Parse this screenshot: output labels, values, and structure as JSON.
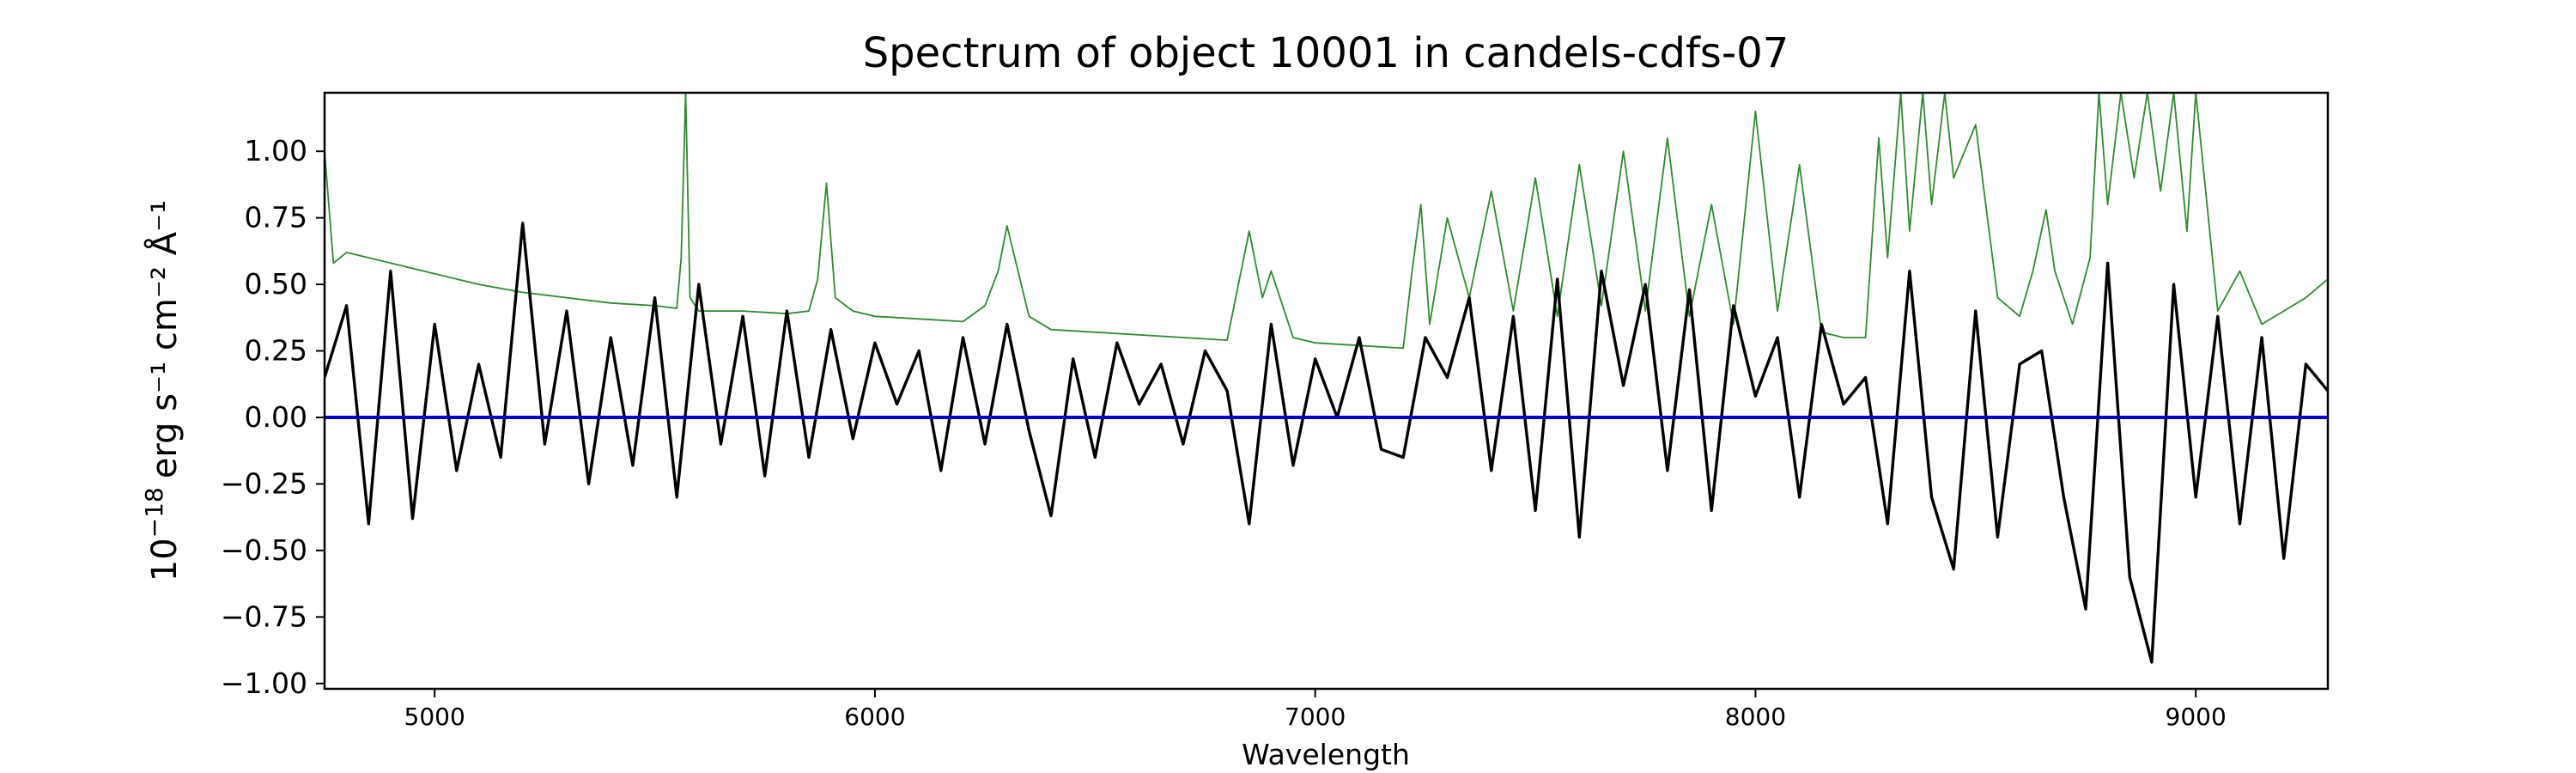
{
  "chart_data": {
    "type": "line",
    "title": "Spectrum of object 10001 in candels-cdfs-07",
    "xlabel": "Wavelength",
    "ylabel_base": "10",
    "ylabel_exp": "−18",
    "ylabel_rest": "erg s⁻¹ cm⁻² Å⁻¹",
    "xlim": [
      4750,
      9300
    ],
    "ylim": [
      -1.02,
      1.22
    ],
    "x_ticks": [
      5000,
      6000,
      7000,
      8000,
      9000
    ],
    "x_tick_labels": [
      "5000",
      "6000",
      "7000",
      "8000",
      "9000"
    ],
    "y_ticks": [
      -1.0,
      -0.75,
      -0.5,
      -0.25,
      0.0,
      0.25,
      0.5,
      0.75,
      1.0
    ],
    "y_tick_labels": [
      "−1.00",
      "−0.75",
      "−0.50",
      "−0.25",
      "0.00",
      "0.25",
      "0.50",
      "0.75",
      "1.00"
    ],
    "grid": false,
    "legend": "none",
    "series": [
      {
        "role": "flux",
        "color": "#000000",
        "x": [
          4750,
          4800,
          4850,
          4900,
          4950,
          5000,
          5050,
          5100,
          5150,
          5200,
          5250,
          5300,
          5350,
          5400,
          5450,
          5500,
          5550,
          5600,
          5650,
          5700,
          5750,
          5800,
          5850,
          5900,
          5950,
          6000,
          6050,
          6100,
          6150,
          6200,
          6250,
          6300,
          6350,
          6400,
          6450,
          6500,
          6550,
          6600,
          6650,
          6700,
          6750,
          6800,
          6850,
          6900,
          6950,
          7000,
          7050,
          7100,
          7150,
          7200,
          7250,
          7300,
          7350,
          7400,
          7450,
          7500,
          7550,
          7600,
          7650,
          7700,
          7750,
          7800,
          7850,
          7900,
          7950,
          8000,
          8050,
          8100,
          8150,
          8200,
          8250,
          8300,
          8350,
          8400,
          8450,
          8500,
          8550,
          8600,
          8650,
          8700,
          8750,
          8800,
          8850,
          8900,
          8950,
          9000,
          9050,
          9100,
          9150,
          9200,
          9250,
          9300
        ],
        "y": [
          0.15,
          0.42,
          -0.4,
          0.55,
          -0.38,
          0.35,
          -0.2,
          0.2,
          -0.15,
          0.73,
          -0.1,
          0.4,
          -0.25,
          0.3,
          -0.18,
          0.45,
          -0.3,
          0.5,
          -0.1,
          0.38,
          -0.22,
          0.4,
          -0.15,
          0.33,
          -0.08,
          0.28,
          0.05,
          0.25,
          -0.2,
          0.3,
          -0.1,
          0.35,
          -0.05,
          -0.37,
          0.22,
          -0.15,
          0.28,
          0.05,
          0.2,
          -0.1,
          0.25,
          0.1,
          -0.4,
          0.35,
          -0.18,
          0.22,
          0.0,
          0.3,
          -0.12,
          -0.15,
          0.3,
          0.15,
          0.45,
          -0.2,
          0.38,
          -0.35,
          0.52,
          -0.45,
          0.55,
          0.12,
          0.5,
          -0.2,
          0.48,
          -0.35,
          0.42,
          0.08,
          0.3,
          -0.3,
          0.35,
          0.05,
          0.15,
          -0.4,
          0.55,
          -0.3,
          -0.57,
          0.4,
          -0.45,
          0.2,
          0.25,
          -0.3,
          -0.72,
          0.58,
          -0.6,
          -0.92,
          0.5,
          -0.3,
          0.38,
          -0.4,
          0.3,
          -0.53,
          0.2,
          0.1
        ]
      },
      {
        "role": "error",
        "color": "#2e8b2e",
        "x": [
          4750,
          4770,
          4800,
          4900,
          5000,
          5100,
          5200,
          5300,
          5400,
          5500,
          5550,
          5560,
          5570,
          5580,
          5600,
          5700,
          5800,
          5850,
          5870,
          5890,
          5910,
          5950,
          6000,
          6100,
          6200,
          6250,
          6280,
          6300,
          6350,
          6400,
          6500,
          6600,
          6700,
          6800,
          6850,
          6880,
          6900,
          6950,
          7000,
          7100,
          7200,
          7220,
          7240,
          7260,
          7300,
          7350,
          7400,
          7450,
          7500,
          7550,
          7600,
          7650,
          7700,
          7750,
          7800,
          7850,
          7900,
          7950,
          8000,
          8050,
          8100,
          8150,
          8200,
          8250,
          8280,
          8300,
          8330,
          8350,
          8380,
          8400,
          8430,
          8450,
          8500,
          8550,
          8600,
          8630,
          8660,
          8680,
          8720,
          8760,
          8780,
          8800,
          8830,
          8860,
          8890,
          8920,
          8950,
          8980,
          9000,
          9050,
          9100,
          9150,
          9200,
          9250,
          9300
        ],
        "y": [
          1.0,
          0.58,
          0.62,
          0.58,
          0.54,
          0.5,
          0.47,
          0.45,
          0.43,
          0.42,
          0.41,
          0.6,
          1.22,
          0.45,
          0.4,
          0.4,
          0.39,
          0.4,
          0.52,
          0.88,
          0.45,
          0.4,
          0.38,
          0.37,
          0.36,
          0.42,
          0.55,
          0.72,
          0.38,
          0.33,
          0.32,
          0.31,
          0.3,
          0.29,
          0.7,
          0.45,
          0.55,
          0.3,
          0.28,
          0.27,
          0.26,
          0.55,
          0.8,
          0.35,
          0.75,
          0.45,
          0.85,
          0.4,
          0.9,
          0.38,
          0.95,
          0.42,
          1.0,
          0.4,
          1.05,
          0.38,
          0.8,
          0.35,
          1.15,
          0.4,
          0.95,
          0.32,
          0.3,
          0.3,
          1.05,
          0.6,
          1.22,
          0.7,
          1.22,
          0.8,
          1.22,
          0.9,
          1.1,
          0.45,
          0.38,
          0.55,
          0.78,
          0.55,
          0.35,
          0.6,
          1.22,
          0.8,
          1.22,
          0.9,
          1.22,
          0.85,
          1.22,
          0.7,
          1.22,
          0.4,
          0.55,
          0.35,
          0.4,
          0.45,
          0.52
        ]
      },
      {
        "role": "zero",
        "color": "#0000cc",
        "x": [
          4750,
          9300
        ],
        "y": [
          0.0,
          0.0
        ]
      }
    ]
  }
}
